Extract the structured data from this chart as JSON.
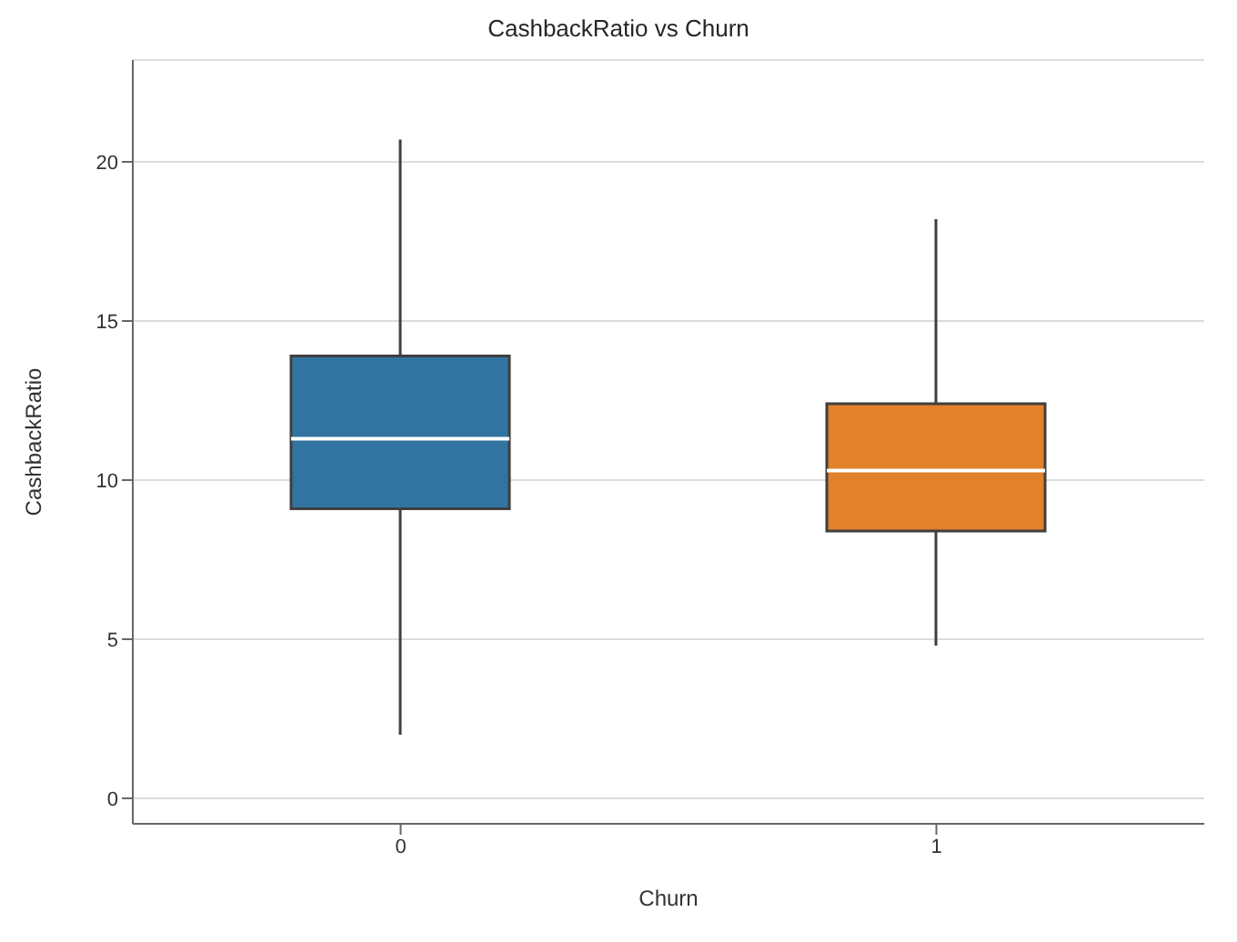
{
  "chart_data": {
    "type": "box",
    "title": "CashbackRatio vs Churn",
    "xlabel": "Churn",
    "ylabel": "CashbackRatio",
    "categories": [
      "0",
      "1"
    ],
    "boxes": [
      {
        "low": 2,
        "q1": 9.1,
        "median": 11.3,
        "q3": 13.9,
        "high": 20.7
      },
      {
        "low": 4.8,
        "q1": 8.4,
        "median": 10.3,
        "q3": 12.4,
        "high": 18.2
      }
    ],
    "colors": [
      "#3274a1",
      "#e1812c"
    ],
    "ylim": [
      -0.8,
      23.2
    ],
    "yticks": [
      0,
      5,
      10,
      15,
      20
    ],
    "grid": "y"
  }
}
